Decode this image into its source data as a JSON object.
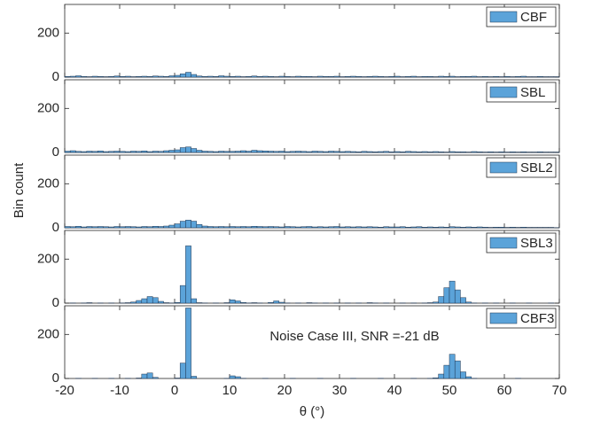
{
  "chart_data": [
    {
      "type": "histogram",
      "name": "CBF",
      "color": "#5ba3d9",
      "xlim": [
        -20,
        70
      ],
      "ylim": [
        0,
        330
      ],
      "yticks": [
        0,
        200
      ],
      "bins": [
        -20,
        -19,
        -18,
        -17,
        -16,
        -15,
        -14,
        -13,
        -12,
        -11,
        -10,
        -9,
        -8,
        -7,
        -6,
        -5,
        -4,
        -3,
        -2,
        -1,
        0,
        1,
        2,
        3,
        4,
        5,
        6,
        7,
        8,
        9,
        10,
        11,
        12,
        13,
        14,
        15,
        16,
        17,
        18,
        19,
        20,
        21,
        22,
        23,
        24,
        25,
        26,
        27,
        28,
        29,
        30,
        31,
        32,
        33,
        34,
        35,
        36,
        37,
        38,
        39,
        40,
        41,
        42,
        43,
        44,
        45,
        46,
        47,
        48,
        49,
        50,
        51,
        52,
        53,
        54,
        55,
        56,
        57,
        58,
        59,
        60,
        61,
        62,
        63,
        64,
        65,
        66,
        67,
        68,
        69,
        70
      ],
      "values": [
        3,
        4,
        6,
        3,
        2,
        4,
        3,
        2,
        3,
        5,
        3,
        4,
        2,
        3,
        4,
        3,
        5,
        4,
        3,
        6,
        8,
        15,
        22,
        12,
        5,
        3,
        4,
        3,
        6,
        4,
        3,
        4,
        2,
        3,
        5,
        3,
        4,
        3,
        2,
        4,
        3,
        2,
        4,
        3,
        3,
        2,
        4,
        3,
        3,
        4,
        2,
        3,
        4,
        3,
        2,
        3,
        4,
        3,
        2,
        3,
        4,
        2,
        3,
        4,
        2,
        3,
        3,
        2,
        4,
        3,
        4,
        2,
        3,
        3,
        4,
        2,
        3,
        2,
        3,
        2,
        3,
        2,
        3,
        4,
        2,
        2,
        3,
        2,
        2,
        2
      ]
    },
    {
      "type": "histogram",
      "name": "SBL",
      "color": "#5ba3d9",
      "xlim": [
        -20,
        70
      ],
      "ylim": [
        0,
        330
      ],
      "yticks": [
        0,
        200
      ],
      "bins": [
        -20,
        -19,
        -18,
        -17,
        -16,
        -15,
        -14,
        -13,
        -12,
        -11,
        -10,
        -9,
        -8,
        -7,
        -6,
        -5,
        -4,
        -3,
        -2,
        -1,
        0,
        1,
        2,
        3,
        4,
        5,
        6,
        7,
        8,
        9,
        10,
        11,
        12,
        13,
        14,
        15,
        16,
        17,
        18,
        19,
        20,
        21,
        22,
        23,
        24,
        25,
        26,
        27,
        28,
        29,
        30,
        31,
        32,
        33,
        34,
        35,
        36,
        37,
        38,
        39,
        40,
        41,
        42,
        43,
        44,
        45,
        46,
        47,
        48,
        49,
        50,
        51,
        52,
        53,
        54,
        55,
        56,
        57,
        58,
        59,
        60,
        61,
        62,
        63,
        64,
        65,
        66,
        67,
        68,
        69,
        70
      ],
      "values": [
        6,
        8,
        5,
        4,
        6,
        5,
        7,
        4,
        5,
        6,
        5,
        4,
        6,
        5,
        7,
        4,
        6,
        5,
        8,
        10,
        12,
        22,
        25,
        18,
        10,
        6,
        5,
        4,
        6,
        5,
        5,
        6,
        8,
        6,
        10,
        8,
        7,
        6,
        5,
        6,
        4,
        5,
        6,
        5,
        4,
        6,
        5,
        4,
        6,
        5,
        4,
        5,
        4,
        3,
        5,
        4,
        3,
        4,
        5,
        3,
        4,
        3,
        5,
        4,
        3,
        4,
        3,
        4,
        3,
        2,
        4,
        3,
        3,
        2,
        4,
        3,
        2,
        3,
        2,
        3,
        2,
        3,
        2,
        3,
        2,
        2,
        3,
        2,
        2,
        2
      ]
    },
    {
      "type": "histogram",
      "name": "SBL2",
      "color": "#5ba3d9",
      "xlim": [
        -20,
        70
      ],
      "ylim": [
        0,
        330
      ],
      "yticks": [
        0,
        200
      ],
      "bins": [
        -20,
        -19,
        -18,
        -17,
        -16,
        -15,
        -14,
        -13,
        -12,
        -11,
        -10,
        -9,
        -8,
        -7,
        -6,
        -5,
        -4,
        -3,
        -2,
        -1,
        0,
        1,
        2,
        3,
        4,
        5,
        6,
        7,
        8,
        9,
        10,
        11,
        12,
        13,
        14,
        15,
        16,
        17,
        18,
        19,
        20,
        21,
        22,
        23,
        24,
        25,
        26,
        27,
        28,
        29,
        30,
        31,
        32,
        33,
        34,
        35,
        36,
        37,
        38,
        39,
        40,
        41,
        42,
        43,
        44,
        45,
        46,
        47,
        48,
        49,
        50,
        51,
        52,
        53,
        54,
        55,
        56,
        57,
        58,
        59,
        60,
        61,
        62,
        63,
        64,
        65,
        66,
        67,
        68,
        69,
        70
      ],
      "values": [
        6,
        5,
        7,
        4,
        6,
        5,
        6,
        5,
        4,
        6,
        5,
        6,
        5,
        4,
        6,
        5,
        7,
        6,
        8,
        12,
        18,
        30,
        35,
        30,
        15,
        8,
        6,
        5,
        6,
        5,
        6,
        5,
        6,
        5,
        7,
        6,
        5,
        6,
        5,
        4,
        6,
        5,
        4,
        5,
        6,
        4,
        5,
        4,
        5,
        6,
        4,
        5,
        4,
        5,
        4,
        5,
        4,
        3,
        5,
        4,
        4,
        5,
        3,
        4,
        5,
        3,
        4,
        3,
        4,
        3,
        5,
        4,
        3,
        4,
        3,
        4,
        3,
        2,
        3,
        3,
        2,
        3,
        2,
        3,
        2,
        2,
        2,
        2,
        2,
        1
      ]
    },
    {
      "type": "histogram",
      "name": "SBL3",
      "color": "#5ba3d9",
      "xlim": [
        -20,
        70
      ],
      "ylim": [
        0,
        330
      ],
      "yticks": [
        0,
        200
      ],
      "bins": [
        -20,
        -19,
        -18,
        -17,
        -16,
        -15,
        -14,
        -13,
        -12,
        -11,
        -10,
        -9,
        -8,
        -7,
        -6,
        -5,
        -4,
        -3,
        -2,
        -1,
        0,
        1,
        2,
        3,
        4,
        5,
        6,
        7,
        8,
        9,
        10,
        11,
        12,
        13,
        14,
        15,
        16,
        17,
        18,
        19,
        20,
        21,
        22,
        23,
        24,
        25,
        26,
        27,
        28,
        29,
        30,
        31,
        32,
        33,
        34,
        35,
        36,
        37,
        38,
        39,
        40,
        41,
        42,
        43,
        44,
        45,
        46,
        47,
        48,
        49,
        50,
        51,
        52,
        53,
        54,
        55,
        56,
        57,
        58,
        59,
        60,
        61,
        62,
        63,
        64,
        65,
        66,
        67,
        68,
        69,
        70
      ],
      "values": [
        0,
        1,
        0,
        1,
        2,
        0,
        1,
        0,
        1,
        0,
        1,
        2,
        5,
        12,
        20,
        30,
        25,
        8,
        2,
        1,
        3,
        80,
        260,
        20,
        2,
        1,
        0,
        1,
        0,
        2,
        15,
        10,
        3,
        1,
        2,
        1,
        0,
        3,
        10,
        4,
        1,
        0,
        1,
        0,
        2,
        1,
        0,
        1,
        0,
        1,
        0,
        1,
        0,
        1,
        0,
        2,
        1,
        0,
        1,
        0,
        0,
        1,
        0,
        1,
        0,
        1,
        2,
        5,
        30,
        70,
        100,
        60,
        25,
        5,
        1,
        0,
        1,
        0,
        1,
        0,
        0,
        1,
        0,
        0,
        1,
        0,
        0,
        0,
        1,
        0
      ]
    },
    {
      "type": "histogram",
      "name": "CBF3",
      "color": "#5ba3d9",
      "xlim": [
        -20,
        70
      ],
      "ylim": [
        0,
        330
      ],
      "yticks": [
        0,
        200
      ],
      "xticks": [
        -20,
        -10,
        0,
        10,
        20,
        30,
        40,
        50,
        60,
        70
      ],
      "xlabel": "θ (°)",
      "ylabel": "Bin count",
      "annotation": "Noise Case III, SNR =-21 dB",
      "bins": [
        -20,
        -19,
        -18,
        -17,
        -16,
        -15,
        -14,
        -13,
        -12,
        -11,
        -10,
        -9,
        -8,
        -7,
        -6,
        -5,
        -4,
        -3,
        -2,
        -1,
        0,
        1,
        2,
        3,
        4,
        5,
        6,
        7,
        8,
        9,
        10,
        11,
        12,
        13,
        14,
        15,
        16,
        17,
        18,
        19,
        20,
        21,
        22,
        23,
        24,
        25,
        26,
        27,
        28,
        29,
        30,
        31,
        32,
        33,
        34,
        35,
        36,
        37,
        38,
        39,
        40,
        41,
        42,
        43,
        44,
        45,
        46,
        47,
        48,
        49,
        50,
        51,
        52,
        53,
        54,
        55,
        56,
        57,
        58,
        59,
        60,
        61,
        62,
        63,
        64,
        65,
        66,
        67,
        68,
        69,
        70
      ],
      "values": [
        0,
        0,
        1,
        0,
        0,
        1,
        0,
        0,
        1,
        0,
        0,
        1,
        0,
        2,
        20,
        25,
        5,
        0,
        0,
        0,
        2,
        70,
        320,
        10,
        0,
        0,
        0,
        0,
        0,
        1,
        12,
        8,
        1,
        0,
        0,
        0,
        1,
        0,
        0,
        0,
        0,
        1,
        0,
        0,
        0,
        0,
        1,
        0,
        0,
        0,
        0,
        0,
        1,
        0,
        0,
        0,
        0,
        1,
        0,
        0,
        0,
        0,
        0,
        1,
        0,
        0,
        1,
        3,
        20,
        60,
        110,
        80,
        30,
        8,
        1,
        0,
        0,
        0,
        0,
        0,
        0,
        0,
        1,
        0,
        0,
        0,
        0,
        0,
        0,
        0
      ]
    }
  ]
}
